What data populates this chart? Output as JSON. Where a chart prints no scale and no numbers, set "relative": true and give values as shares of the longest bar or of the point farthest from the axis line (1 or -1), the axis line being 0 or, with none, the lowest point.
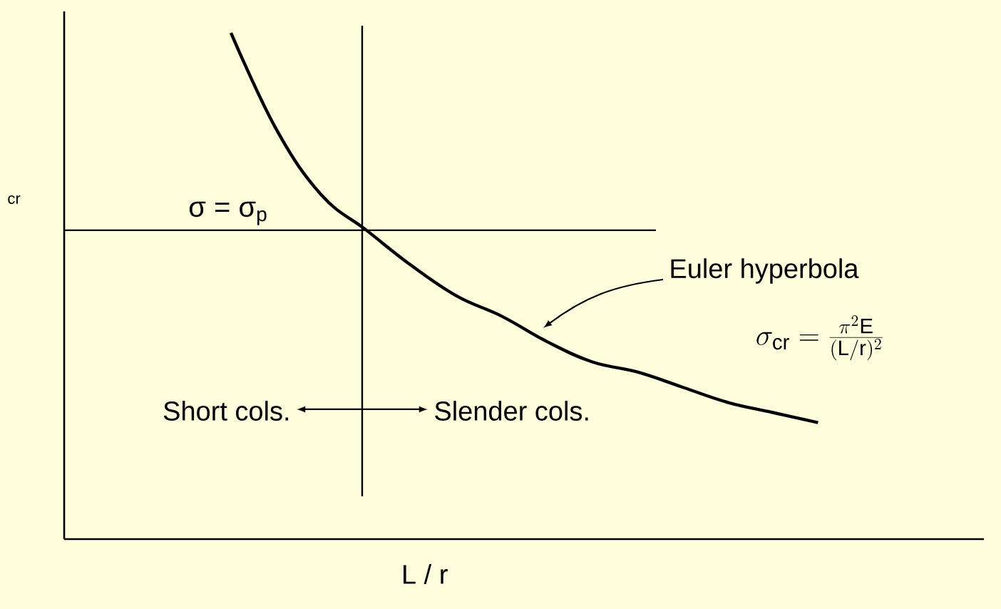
{
  "chart_data": {
    "type": "line",
    "relative": true,
    "xlabel": "L / r",
    "categories": [
      null,
      null,
      null,
      null,
      null,
      null,
      null,
      null,
      null,
      null,
      null,
      null,
      null,
      null
    ],
    "series": [
      {
        "color": "#000000",
        "values": [
          1,
          0.81,
          0.68,
          0.61,
          0.54,
          0.48,
          0.44,
          0.39,
          0.35,
          0.33,
          0.3,
          0.27,
          0.25,
          0.23
        ]
      }
    ],
    "ref_lines": [
      {
        "axis": "y",
        "value": 0.61,
        "label": "σ = σ$_{p}$",
        "color": "#000000"
      }
    ],
    "annotations": [
      "Short cols.",
      "Slender cols.",
      "Euler hyperbola",
      "\\sigma_{\\mathrm{cr}} = \\frac{\\pi^{2}\\mathrm{E}}{(\\mathrm{L}/\\mathrm{r})^{2}}",
      "cr"
    ],
    "marker": "none",
    "line_style": "solid"
  }
}
